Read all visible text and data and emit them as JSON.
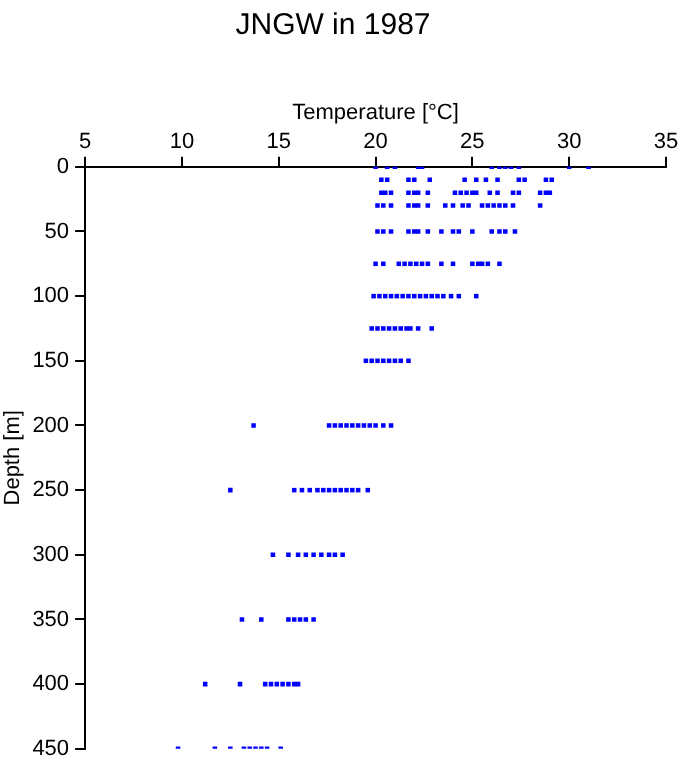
{
  "chart_data": {
    "type": "scatter",
    "title": "JNGW in 1987",
    "xlabel": "Temperature [°C]",
    "ylabel": "Depth [m]",
    "xlim": [
      5,
      35
    ],
    "xticks": [
      5,
      10,
      15,
      20,
      25,
      30,
      35
    ],
    "ylim": [
      450,
      0
    ],
    "yticks": [
      0,
      50,
      100,
      150,
      200,
      250,
      300,
      350,
      400,
      450
    ],
    "marker": "square",
    "series": [
      {
        "color": "#0000ff",
        "x": [
          20.0,
          20.6,
          21.0,
          22.2,
          22.4,
          26.0,
          26.4,
          26.7,
          27.0,
          27.4,
          30.0,
          31.0,
          20.3,
          20.6,
          21.7,
          22.0,
          22.8,
          24.6,
          25.2,
          25.7,
          26.3,
          27.4,
          27.7,
          28.8,
          29.1,
          20.3,
          20.5,
          20.8,
          21.7,
          22.0,
          22.2,
          22.7,
          24.1,
          24.4,
          24.7,
          25.0,
          25.2,
          25.9,
          26.3,
          27.1,
          27.4,
          28.5,
          28.8,
          29.0,
          20.1,
          20.4,
          20.8,
          21.7,
          22.0,
          22.2,
          22.7,
          23.6,
          24.0,
          24.5,
          24.8,
          25.5,
          25.8,
          26.1,
          26.4,
          26.7,
          27.1,
          28.5,
          20.1,
          20.4,
          20.8,
          21.7,
          22.0,
          22.2,
          22.7,
          23.4,
          24.0,
          24.3,
          25.0,
          26.0,
          26.4,
          26.7,
          27.2,
          20.0,
          20.4,
          21.2,
          21.5,
          21.8,
          22.1,
          22.4,
          22.7,
          23.4,
          24.0,
          25.0,
          25.3,
          25.5,
          25.8,
          26.4,
          19.9,
          20.2,
          20.5,
          20.8,
          21.1,
          21.4,
          21.7,
          22.0,
          22.3,
          22.6,
          22.9,
          23.2,
          23.5,
          23.9,
          24.3,
          25.2,
          19.8,
          20.1,
          20.4,
          20.7,
          21.0,
          21.3,
          21.6,
          21.8,
          22.2,
          22.9,
          19.5,
          19.8,
          20.1,
          20.4,
          20.7,
          21.0,
          21.3,
          21.7,
          13.7,
          17.6,
          17.9,
          18.2,
          18.5,
          18.8,
          19.1,
          19.4,
          19.7,
          20.0,
          20.4,
          20.8,
          12.5,
          15.8,
          16.2,
          16.6,
          17.0,
          17.3,
          17.6,
          17.9,
          18.2,
          18.5,
          18.8,
          19.1,
          19.6,
          14.7,
          15.5,
          16.0,
          16.4,
          16.8,
          17.2,
          17.6,
          17.9,
          18.3,
          13.1,
          14.1,
          15.5,
          15.8,
          16.1,
          16.4,
          16.8,
          11.2,
          13.0,
          14.3,
          14.6,
          14.9,
          15.2,
          15.5,
          15.8,
          16.0,
          9.8,
          11.7,
          12.5,
          13.2,
          13.5,
          13.8,
          14.1,
          14.4,
          15.1
        ],
        "values": [
          0,
          0,
          0,
          0,
          0,
          0,
          0,
          0,
          0,
          0,
          0,
          0,
          10,
          10,
          10,
          10,
          10,
          10,
          10,
          10,
          10,
          10,
          10,
          10,
          10,
          20,
          20,
          20,
          20,
          20,
          20,
          20,
          20,
          20,
          20,
          20,
          20,
          20,
          20,
          20,
          20,
          20,
          20,
          20,
          30,
          30,
          30,
          30,
          30,
          30,
          30,
          30,
          30,
          30,
          30,
          30,
          30,
          30,
          30,
          30,
          30,
          30,
          50,
          50,
          50,
          50,
          50,
          50,
          50,
          50,
          50,
          50,
          50,
          50,
          50,
          50,
          50,
          75,
          75,
          75,
          75,
          75,
          75,
          75,
          75,
          75,
          75,
          75,
          75,
          75,
          75,
          75,
          100,
          100,
          100,
          100,
          100,
          100,
          100,
          100,
          100,
          100,
          100,
          100,
          100,
          100,
          100,
          100,
          125,
          125,
          125,
          125,
          125,
          125,
          125,
          125,
          125,
          125,
          150,
          150,
          150,
          150,
          150,
          150,
          150,
          150,
          200,
          200,
          200,
          200,
          200,
          200,
          200,
          200,
          200,
          200,
          200,
          200,
          250,
          250,
          250,
          250,
          250,
          250,
          250,
          250,
          250,
          250,
          250,
          250,
          250,
          300,
          300,
          300,
          300,
          300,
          300,
          300,
          300,
          300,
          350,
          350,
          350,
          350,
          350,
          350,
          350,
          400,
          400,
          400,
          400,
          400,
          400,
          400,
          400,
          400,
          450,
          450,
          450,
          450,
          450,
          450,
          450,
          450,
          450
        ]
      }
    ]
  }
}
